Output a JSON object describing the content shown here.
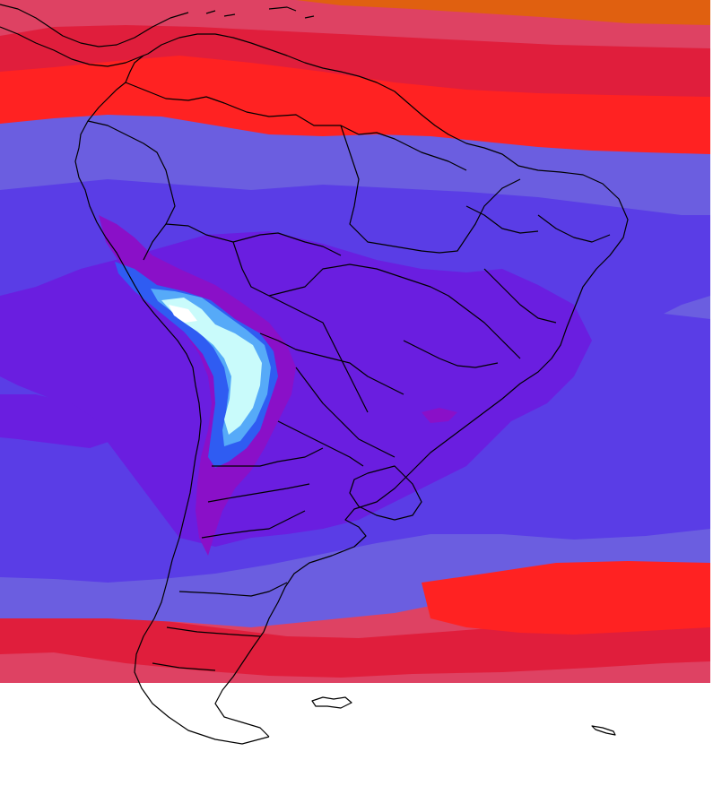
{
  "map": {
    "region": "South America",
    "field_colors": {
      "orange": "#e06010",
      "rose": "#de4263",
      "crimson": "#e01e3c",
      "red": "#ff2222",
      "light_violet": "#6b5ee0",
      "violet": "#5a3de6",
      "deep_violet": "#6a1ee0",
      "purple": "#8a10c8",
      "blue": "#2f5cf2",
      "sky": "#56aaf8",
      "pale_cyan": "#c9fbfb",
      "white": "#ffffff"
    },
    "border_color": "#000000",
    "background_color": "#ffffff"
  }
}
